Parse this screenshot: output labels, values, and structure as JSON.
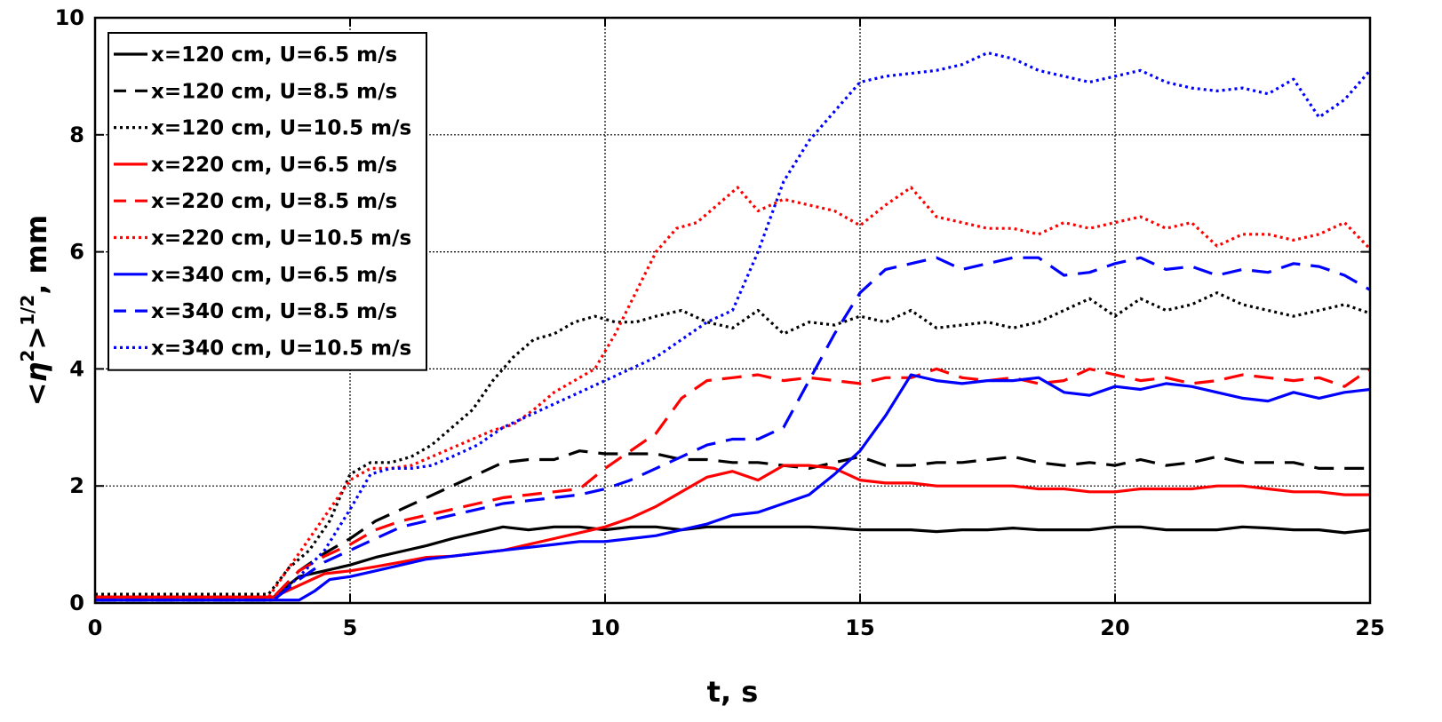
{
  "chart_data": {
    "type": "line",
    "title": "",
    "xlabel": "t, s",
    "ylabel": {
      "pre": "<",
      "symbol": "η",
      "sup1": "2",
      "mid": ">",
      "sup2": "1/2",
      "post": ", mm"
    },
    "xlim": [
      0,
      25
    ],
    "ylim": [
      0,
      10
    ],
    "xticks": [
      0,
      5,
      10,
      15,
      20,
      25
    ],
    "yticks": [
      0,
      2,
      4,
      6,
      8,
      10
    ],
    "grid": true,
    "legend_position": "top-left",
    "series": [
      {
        "name": "x=120 cm, U=6.5 m/s",
        "color": "#000000",
        "style": "solid",
        "x": [
          0,
          3.5,
          4,
          4.5,
          5,
          5.5,
          6,
          6.5,
          7,
          7.5,
          8,
          8.5,
          9,
          9.5,
          10,
          10.5,
          11,
          11.5,
          12,
          12.5,
          13,
          13.5,
          14,
          14.5,
          15,
          15.5,
          16,
          16.5,
          17,
          17.5,
          18,
          18.5,
          19,
          19.5,
          20,
          20.5,
          21,
          21.5,
          22,
          22.5,
          23,
          23.5,
          24,
          24.5,
          25
        ],
        "y": [
          0.1,
          0.1,
          0.45,
          0.55,
          0.65,
          0.78,
          0.88,
          0.98,
          1.1,
          1.2,
          1.3,
          1.25,
          1.3,
          1.3,
          1.25,
          1.3,
          1.3,
          1.25,
          1.3,
          1.3,
          1.3,
          1.3,
          1.3,
          1.28,
          1.25,
          1.25,
          1.25,
          1.22,
          1.25,
          1.25,
          1.28,
          1.25,
          1.25,
          1.25,
          1.3,
          1.3,
          1.25,
          1.25,
          1.25,
          1.3,
          1.28,
          1.25,
          1.25,
          1.2,
          1.25
        ]
      },
      {
        "name": "x=120 cm, U=8.5 m/s",
        "color": "#000000",
        "style": "dashed",
        "x": [
          0,
          3.5,
          4,
          4.5,
          5,
          5.5,
          6,
          6.5,
          7,
          7.5,
          8,
          8.5,
          9,
          9.5,
          10,
          10.5,
          11,
          11.5,
          12,
          12.5,
          13,
          13.5,
          14,
          14.5,
          15,
          15.5,
          16,
          16.5,
          17,
          17.5,
          18,
          18.5,
          19,
          19.5,
          20,
          20.5,
          21,
          21.5,
          22,
          22.5,
          23,
          23.5,
          24,
          24.5,
          25
        ],
        "y": [
          0.1,
          0.1,
          0.55,
          0.85,
          1.1,
          1.4,
          1.6,
          1.8,
          2.0,
          2.2,
          2.4,
          2.45,
          2.45,
          2.6,
          2.55,
          2.55,
          2.55,
          2.45,
          2.45,
          2.4,
          2.4,
          2.35,
          2.3,
          2.4,
          2.5,
          2.35,
          2.35,
          2.4,
          2.4,
          2.45,
          2.5,
          2.4,
          2.35,
          2.4,
          2.35,
          2.45,
          2.35,
          2.4,
          2.5,
          2.4,
          2.4,
          2.4,
          2.3,
          2.3,
          2.3
        ]
      },
      {
        "name": "x=120 cm, U=10.5 m/s",
        "color": "#000000",
        "style": "dotted",
        "x": [
          0,
          3.4,
          3.8,
          4.2,
          4.6,
          5,
          5.4,
          5.8,
          6.2,
          6.6,
          7,
          7.4,
          7.8,
          8.2,
          8.6,
          9,
          9.4,
          9.8,
          10.2,
          10.6,
          11,
          11.5,
          12,
          12.5,
          13,
          13.5,
          14,
          14.5,
          15,
          15.5,
          16,
          16.5,
          17,
          17.5,
          18,
          18.5,
          19,
          19.5,
          20,
          20.5,
          21,
          21.5,
          22,
          22.5,
          23,
          23.5,
          24,
          24.5,
          25
        ],
        "y": [
          0.15,
          0.15,
          0.6,
          0.9,
          1.4,
          2.2,
          2.4,
          2.4,
          2.5,
          2.7,
          3.0,
          3.3,
          3.8,
          4.2,
          4.5,
          4.6,
          4.8,
          4.9,
          4.8,
          4.8,
          4.9,
          5.0,
          4.8,
          4.7,
          5.0,
          4.6,
          4.8,
          4.75,
          4.9,
          4.8,
          5.0,
          4.7,
          4.75,
          4.8,
          4.7,
          4.8,
          5.0,
          5.2,
          4.9,
          5.2,
          5.0,
          5.1,
          5.3,
          5.1,
          5.0,
          4.9,
          5.0,
          5.1,
          4.95
        ]
      },
      {
        "name": "x=220 cm, U=6.5 m/s",
        "color": "#ff0000",
        "style": "solid",
        "x": [
          0,
          3.5,
          4,
          4.5,
          5,
          5.5,
          6,
          6.5,
          7,
          7.5,
          8,
          8.5,
          9,
          9.5,
          10,
          10.5,
          11,
          11.5,
          12,
          12.5,
          13,
          13.5,
          14,
          14.5,
          15,
          15.5,
          16,
          16.5,
          17,
          17.5,
          18,
          18.5,
          19,
          19.5,
          20,
          20.5,
          21,
          21.5,
          22,
          22.5,
          23,
          23.5,
          24,
          24.5,
          25
        ],
        "y": [
          0.1,
          0.1,
          0.3,
          0.5,
          0.55,
          0.62,
          0.7,
          0.78,
          0.8,
          0.85,
          0.9,
          1.0,
          1.1,
          1.2,
          1.3,
          1.45,
          1.65,
          1.9,
          2.15,
          2.25,
          2.1,
          2.35,
          2.35,
          2.3,
          2.1,
          2.05,
          2.05,
          2.0,
          2.0,
          2.0,
          2.0,
          1.95,
          1.95,
          1.9,
          1.9,
          1.95,
          1.95,
          1.95,
          2.0,
          2.0,
          1.95,
          1.9,
          1.9,
          1.85,
          1.85
        ]
      },
      {
        "name": "x=220 cm, U=8.5 m/s",
        "color": "#ff0000",
        "style": "dashed",
        "x": [
          0,
          3.5,
          4,
          4.5,
          5,
          5.5,
          6,
          6.5,
          7,
          7.5,
          8,
          8.5,
          9,
          9.5,
          10,
          10.5,
          11,
          11.5,
          12,
          12.5,
          13,
          13.5,
          14,
          14.5,
          15,
          15.5,
          16,
          16.5,
          17,
          17.5,
          18,
          18.5,
          19,
          19.5,
          20,
          20.5,
          21,
          21.5,
          22,
          22.5,
          23,
          23.5,
          24,
          24.5,
          25
        ],
        "y": [
          0.1,
          0.1,
          0.55,
          0.8,
          1.0,
          1.25,
          1.4,
          1.5,
          1.6,
          1.7,
          1.8,
          1.85,
          1.9,
          1.95,
          2.3,
          2.6,
          2.9,
          3.5,
          3.8,
          3.85,
          3.9,
          3.8,
          3.85,
          3.8,
          3.75,
          3.85,
          3.85,
          4.0,
          3.85,
          3.8,
          3.85,
          3.75,
          3.8,
          4.0,
          3.9,
          3.8,
          3.85,
          3.75,
          3.8,
          3.9,
          3.85,
          3.8,
          3.85,
          3.7,
          4.0
        ]
      },
      {
        "name": "x=220 cm, U=10.5 m/s",
        "color": "#ff0000",
        "style": "dotted",
        "x": [
          0,
          3.4,
          3.8,
          4.2,
          4.6,
          5,
          5.4,
          5.8,
          6.2,
          6.6,
          7,
          7.4,
          7.8,
          8.2,
          8.6,
          9,
          9.4,
          9.8,
          10.2,
          10.6,
          11,
          11.4,
          11.8,
          12.2,
          12.6,
          13,
          13.5,
          14,
          14.5,
          15,
          15.5,
          16,
          16.5,
          17,
          17.5,
          18,
          18.5,
          19,
          19.5,
          20,
          20.5,
          21,
          21.5,
          22,
          22.5,
          23,
          23.5,
          24,
          24.5,
          25
        ],
        "y": [
          0.1,
          0.1,
          0.6,
          1.1,
          1.6,
          2.1,
          2.3,
          2.3,
          2.35,
          2.5,
          2.65,
          2.8,
          2.95,
          3.05,
          3.3,
          3.6,
          3.8,
          4.0,
          4.6,
          5.3,
          6.0,
          6.4,
          6.5,
          6.8,
          7.1,
          6.7,
          6.9,
          6.8,
          6.7,
          6.45,
          6.8,
          7.1,
          6.6,
          6.5,
          6.4,
          6.4,
          6.3,
          6.5,
          6.4,
          6.5,
          6.6,
          6.4,
          6.5,
          6.1,
          6.3,
          6.3,
          6.2,
          6.3,
          6.5,
          6.05
        ]
      },
      {
        "name": "x=340 cm, U=6.5 m/s",
        "color": "#0000ff",
        "style": "solid",
        "x": [
          0,
          4.0,
          4.3,
          4.6,
          5,
          5.5,
          6,
          6.5,
          7,
          7.5,
          8,
          8.5,
          9,
          9.5,
          10,
          10.5,
          11,
          11.5,
          12,
          12.5,
          13,
          13.5,
          14,
          14.5,
          15,
          15.5,
          16,
          16.5,
          17,
          17.5,
          18,
          18.5,
          19,
          19.5,
          20,
          20.5,
          21,
          21.5,
          22,
          22.5,
          23,
          23.5,
          24,
          24.5,
          25
        ],
        "y": [
          0.05,
          0.05,
          0.2,
          0.4,
          0.45,
          0.55,
          0.65,
          0.75,
          0.8,
          0.85,
          0.9,
          0.95,
          1.0,
          1.05,
          1.05,
          1.1,
          1.15,
          1.25,
          1.35,
          1.5,
          1.55,
          1.7,
          1.85,
          2.2,
          2.6,
          3.2,
          3.9,
          3.8,
          3.75,
          3.8,
          3.8,
          3.85,
          3.6,
          3.55,
          3.7,
          3.65,
          3.75,
          3.7,
          3.6,
          3.5,
          3.45,
          3.6,
          3.5,
          3.6,
          3.65
        ]
      },
      {
        "name": "x=340 cm, U=8.5 m/s",
        "color": "#0000ff",
        "style": "dashed",
        "x": [
          0,
          3.5,
          4,
          4.5,
          5,
          5.5,
          6,
          6.5,
          7,
          7.5,
          8,
          8.5,
          9,
          9.5,
          10,
          10.5,
          11,
          11.5,
          12,
          12.5,
          13,
          13.5,
          14,
          14.5,
          15,
          15.5,
          16,
          16.5,
          17,
          17.5,
          18,
          18.5,
          19,
          19.5,
          20,
          20.5,
          21,
          21.5,
          22,
          22.5,
          23,
          23.5,
          24,
          24.5,
          25
        ],
        "y": [
          0.05,
          0.05,
          0.4,
          0.7,
          0.9,
          1.1,
          1.3,
          1.4,
          1.5,
          1.6,
          1.7,
          1.75,
          1.8,
          1.85,
          1.95,
          2.1,
          2.3,
          2.5,
          2.7,
          2.8,
          2.8,
          3.0,
          3.8,
          4.6,
          5.3,
          5.7,
          5.8,
          5.9,
          5.7,
          5.8,
          5.9,
          5.9,
          5.6,
          5.65,
          5.8,
          5.9,
          5.7,
          5.75,
          5.6,
          5.7,
          5.65,
          5.8,
          5.75,
          5.6,
          5.35
        ]
      },
      {
        "name": "x=340 cm, U=10.5 m/s",
        "color": "#0000ff",
        "style": "dotted",
        "x": [
          0,
          3.5,
          4,
          4.5,
          5,
          5.4,
          5.8,
          6.2,
          6.6,
          7,
          7.5,
          8,
          8.5,
          9,
          9.5,
          10,
          10.5,
          11,
          11.5,
          12,
          12.5,
          13,
          13.5,
          14,
          14.5,
          15,
          15.5,
          16,
          16.5,
          17,
          17.5,
          18,
          18.5,
          19,
          19.5,
          20,
          20.5,
          21,
          21.5,
          22,
          22.5,
          23,
          23.5,
          24,
          24.5,
          25
        ],
        "y": [
          0.05,
          0.05,
          0.45,
          0.9,
          1.6,
          2.2,
          2.3,
          2.3,
          2.35,
          2.5,
          2.7,
          3.0,
          3.2,
          3.4,
          3.6,
          3.8,
          4.0,
          4.2,
          4.5,
          4.8,
          5.0,
          6.0,
          7.2,
          7.9,
          8.4,
          8.9,
          9.0,
          9.05,
          9.1,
          9.2,
          9.4,
          9.3,
          9.1,
          9.0,
          8.9,
          9.0,
          9.1,
          8.9,
          8.8,
          8.75,
          8.8,
          8.7,
          8.95,
          8.3,
          8.6,
          9.1
        ]
      }
    ]
  }
}
